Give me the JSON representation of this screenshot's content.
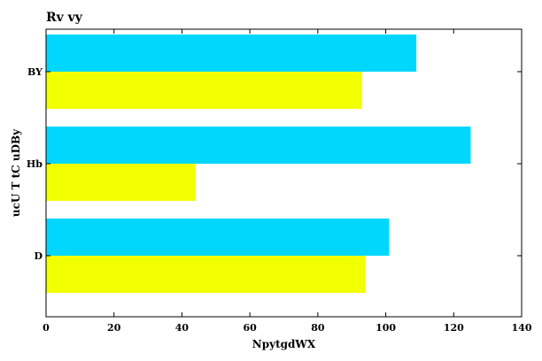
{
  "chart_data": {
    "type": "bar",
    "orientation": "horizontal",
    "title": "Rv vy",
    "xlabel": "NpytgdWX",
    "ylabel": "ucU T tC uDBy",
    "categories": [
      "D",
      "Hb",
      "BY"
    ],
    "series": [
      {
        "values": [
          101,
          125,
          109
        ],
        "color": "#00d7ff"
      },
      {
        "values": [
          94,
          44,
          93
        ],
        "color": "#f2ff00"
      }
    ],
    "xlim": [
      0,
      140
    ],
    "xticks": [
      0,
      20,
      40,
      60,
      80,
      100,
      120,
      140
    ],
    "grid": false
  }
}
